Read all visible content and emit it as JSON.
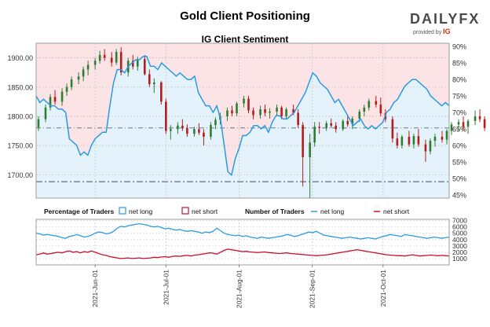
{
  "header": {
    "title": "Gold Client Positioning",
    "subtitle": "IG Client Sentiment",
    "logo_word": "DAILYFX",
    "logo_provider": "provided by",
    "logo_brand": "IG"
  },
  "colors": {
    "long": "#2b9be0",
    "short": "#c8102e",
    "bull_candle": "#2e7d32",
    "bear_candle": "#b71c1c",
    "long_fill": "#e3f2fb",
    "short_fill": "#fbe3e6",
    "price_line": "#6b7b8c"
  },
  "chart_data": [
    {
      "type": "line",
      "name": "price-and-sentiment",
      "title": "IG Client Sentiment",
      "price_axis": {
        "side": "left",
        "ylim": [
          1660,
          1925
        ],
        "ticks": [
          "1700.00",
          "1750.00",
          "1800.00",
          "1850.00",
          "1900.00"
        ],
        "tick_values": [
          1700,
          1750,
          1800,
          1850,
          1900
        ]
      },
      "pct_axis": {
        "side": "right",
        "ylim": [
          44,
          91
        ],
        "ticks": [
          "45%",
          "50%",
          "55%",
          "60%",
          "65%",
          "70%",
          "75%",
          "80%",
          "85%",
          "90%"
        ],
        "tick_values": [
          45,
          50,
          55,
          60,
          65,
          70,
          75,
          80,
          85,
          90
        ]
      },
      "reference_lines": [
        {
          "value": 1780,
          "axis": "price"
        },
        {
          "value": 1688,
          "axis": "price"
        }
      ],
      "candles": {
        "start": "2021-05-07",
        "ohlc": [
          [
            1781,
            1800,
            1775,
            1795
          ],
          [
            1795,
            1820,
            1790,
            1815
          ],
          [
            1815,
            1838,
            1810,
            1833
          ],
          [
            1833,
            1845,
            1820,
            1825
          ],
          [
            1825,
            1848,
            1818,
            1842
          ],
          [
            1842,
            1856,
            1835,
            1850
          ],
          [
            1850,
            1868,
            1845,
            1863
          ],
          [
            1863,
            1875,
            1855,
            1868
          ],
          [
            1868,
            1885,
            1860,
            1880
          ],
          [
            1880,
            1895,
            1870,
            1888
          ],
          [
            1888,
            1900,
            1880,
            1895
          ],
          [
            1895,
            1912,
            1890,
            1905
          ],
          [
            1905,
            1915,
            1895,
            1900
          ],
          [
            1900,
            1910,
            1885,
            1892
          ],
          [
            1892,
            1915,
            1888,
            1910
          ],
          [
            1910,
            1918,
            1870,
            1875
          ],
          [
            1875,
            1900,
            1868,
            1895
          ],
          [
            1895,
            1905,
            1880,
            1885
          ],
          [
            1885,
            1902,
            1878,
            1898
          ],
          [
            1898,
            1905,
            1870,
            1872
          ],
          [
            1872,
            1880,
            1850,
            1855
          ],
          [
            1855,
            1865,
            1840,
            1858
          ],
          [
            1858,
            1860,
            1820,
            1825
          ],
          [
            1825,
            1830,
            1770,
            1775
          ],
          [
            1775,
            1785,
            1760,
            1778
          ],
          [
            1778,
            1790,
            1770,
            1784
          ],
          [
            1784,
            1795,
            1775,
            1780
          ],
          [
            1780,
            1786,
            1765,
            1770
          ],
          [
            1770,
            1782,
            1765,
            1778
          ],
          [
            1778,
            1788,
            1768,
            1772
          ],
          [
            1772,
            1778,
            1750,
            1765
          ],
          [
            1765,
            1790,
            1760,
            1785
          ],
          [
            1785,
            1798,
            1778,
            1794
          ],
          [
            1794,
            1806,
            1786,
            1800
          ],
          [
            1800,
            1815,
            1792,
            1810
          ],
          [
            1810,
            1818,
            1800,
            1805
          ],
          [
            1805,
            1825,
            1800,
            1822
          ],
          [
            1822,
            1835,
            1815,
            1830
          ],
          [
            1830,
            1835,
            1805,
            1810
          ],
          [
            1810,
            1815,
            1795,
            1802
          ],
          [
            1802,
            1818,
            1796,
            1812
          ],
          [
            1812,
            1820,
            1800,
            1806
          ],
          [
            1806,
            1814,
            1796,
            1808
          ],
          [
            1808,
            1820,
            1800,
            1815
          ],
          [
            1815,
            1818,
            1795,
            1800
          ],
          [
            1800,
            1815,
            1795,
            1812
          ],
          [
            1812,
            1820,
            1802,
            1806
          ],
          [
            1806,
            1812,
            1780,
            1785
          ],
          [
            1785,
            1790,
            1680,
            1730
          ],
          [
            1730,
            1770,
            1660,
            1755
          ],
          [
            1755,
            1790,
            1748,
            1782
          ],
          [
            1782,
            1790,
            1770,
            1780
          ],
          [
            1780,
            1792,
            1775,
            1788
          ],
          [
            1788,
            1796,
            1780,
            1784
          ],
          [
            1784,
            1790,
            1772,
            1778
          ],
          [
            1778,
            1795,
            1775,
            1792
          ],
          [
            1792,
            1800,
            1782,
            1786
          ],
          [
            1786,
            1800,
            1778,
            1796
          ],
          [
            1796,
            1812,
            1790,
            1808
          ],
          [
            1808,
            1820,
            1800,
            1815
          ],
          [
            1815,
            1830,
            1810,
            1826
          ],
          [
            1826,
            1835,
            1815,
            1820
          ],
          [
            1820,
            1832,
            1800,
            1805
          ],
          [
            1805,
            1812,
            1790,
            1795
          ],
          [
            1795,
            1800,
            1755,
            1762
          ],
          [
            1762,
            1772,
            1745,
            1750
          ],
          [
            1750,
            1768,
            1745,
            1765
          ],
          [
            1765,
            1775,
            1748,
            1752
          ],
          [
            1752,
            1770,
            1745,
            1766
          ],
          [
            1766,
            1778,
            1748,
            1752
          ],
          [
            1752,
            1760,
            1722,
            1740
          ],
          [
            1740,
            1762,
            1735,
            1758
          ],
          [
            1758,
            1770,
            1748,
            1765
          ],
          [
            1765,
            1775,
            1755,
            1760
          ],
          [
            1760,
            1778,
            1752,
            1775
          ],
          [
            1775,
            1790,
            1768,
            1786
          ],
          [
            1786,
            1795,
            1775,
            1790
          ],
          [
            1790,
            1800,
            1775,
            1782
          ],
          [
            1782,
            1795,
            1770,
            1792
          ],
          [
            1792,
            1810,
            1785,
            1800
          ],
          [
            1800,
            1812,
            1790,
            1795
          ],
          [
            1795,
            1800,
            1775,
            1780
          ]
        ]
      },
      "net_long_pct_series": {
        "name": "net long",
        "values": [
          75,
          73,
          74,
          73,
          72,
          72,
          71,
          71,
          70,
          62,
          61,
          60,
          57,
          58,
          57,
          60,
          62,
          63,
          64,
          64,
          72,
          79,
          83,
          83,
          82,
          84,
          85,
          86,
          86,
          87,
          87,
          84,
          84,
          83,
          85,
          84,
          83,
          82,
          81,
          82,
          81,
          80,
          80,
          81,
          76,
          74,
          72,
          72,
          70,
          72,
          68,
          60,
          52,
          51,
          56,
          59,
          63,
          63,
          64,
          66,
          66,
          65,
          66,
          64,
          67,
          69,
          69,
          68,
          68,
          69,
          70,
          72,
          74,
          76,
          79,
          82,
          81,
          79,
          78,
          77,
          75,
          73,
          74,
          72,
          70,
          68,
          66,
          67,
          68,
          66,
          65,
          66,
          65,
          66,
          67,
          70,
          71,
          73,
          74,
          76,
          78,
          79,
          80,
          80,
          79,
          78,
          77,
          75,
          74,
          73,
          72,
          73,
          72
        ]
      }
    },
    {
      "type": "line",
      "name": "percentage-of-traders",
      "legend": {
        "title": "Percentage of Traders",
        "items": [
          "net long",
          "net short"
        ]
      },
      "series": [
        {
          "name": "net long"
        },
        {
          "name": "net short"
        }
      ]
    },
    {
      "type": "line",
      "name": "number-of-traders",
      "legend": {
        "title": "Number of Traders",
        "items": [
          "net long",
          "net short"
        ]
      },
      "y_axis": {
        "side": "right",
        "ylim": [
          0,
          7200
        ],
        "ticks": [
          "1000",
          "2000",
          "3000",
          "4000",
          "5000",
          "6000",
          "7000"
        ],
        "tick_values": [
          1000,
          2000,
          3000,
          4000,
          5000,
          6000,
          7000
        ]
      },
      "series": [
        {
          "name": "net long",
          "values": [
            5000,
            4900,
            4700,
            4800,
            4700,
            4600,
            4500,
            4300,
            4200,
            4500,
            4600,
            4800,
            4600,
            4400,
            4500,
            4700,
            5000,
            5200,
            5100,
            4900,
            5000,
            5300,
            5800,
            6100,
            6000,
            6200,
            6300,
            6400,
            6500,
            6400,
            6300,
            6100,
            6000,
            6100,
            5900,
            5700,
            5800,
            5600,
            5500,
            5600,
            5400,
            5300,
            5400,
            5300,
            5200,
            5000,
            5200,
            5100,
            5300,
            5800,
            5400,
            5000,
            4800,
            4700,
            4600,
            4700,
            4500,
            4600,
            4400,
            4300,
            4200,
            4400,
            4300,
            4200,
            4300,
            4400,
            4500,
            4600,
            4800,
            4700,
            4500,
            4600,
            4800,
            5000,
            5200,
            5100,
            5300,
            5000,
            4700,
            4600,
            4500,
            4400,
            4300,
            4200,
            4300,
            4400,
            4300,
            4200,
            4100,
            4200,
            4300,
            4200,
            4100,
            4300,
            4500,
            4600,
            4800,
            4700,
            4600,
            4500,
            4800,
            4700,
            4600,
            4500,
            4400,
            4300,
            4200,
            4300,
            4400,
            4300,
            4200,
            4300,
            4400
          ]
        },
        {
          "name": "net short",
          "values": [
            1600,
            1700,
            1900,
            1700,
            1800,
            1900,
            2000,
            1900,
            2100,
            2200,
            2000,
            2100,
            1900,
            2100,
            2000,
            2200,
            2000,
            1800,
            1600,
            1500,
            1300,
            1200,
            1100,
            1000,
            1050,
            1100,
            1000,
            1050,
            1100,
            1000,
            1050,
            1100,
            1200,
            1150,
            1250,
            1300,
            1200,
            1350,
            1400,
            1350,
            1450,
            1500,
            1400,
            1550,
            1600,
            1700,
            1800,
            1900,
            1850,
            1700,
            2000,
            2300,
            2500,
            2400,
            2300,
            2200,
            2100,
            2150,
            2050,
            2000,
            1950,
            2000,
            2050,
            1950,
            1900,
            1850,
            1800,
            1850,
            1900,
            1800,
            1750,
            1700,
            1650,
            1600,
            1550,
            1500,
            1450,
            1500,
            1550,
            1600,
            1700,
            1800,
            1900,
            2000,
            2100,
            2200,
            2300,
            2400,
            2300,
            2200,
            2100,
            2000,
            1900,
            1800,
            1700,
            1600,
            1550,
            1500,
            1450,
            1450,
            1400,
            1500,
            1600,
            1500,
            1400,
            1450,
            1500,
            1550,
            1500,
            1450,
            1500,
            1450,
            1400
          ]
        }
      ]
    }
  ],
  "x_axis": {
    "labels": [
      "2021-Jun-01",
      "2021-Jul-01",
      "2021-Aug-01",
      "2021-Sep-01",
      "2021-Oct-01"
    ],
    "label_dates": [
      "2021-06-01",
      "2021-07-01",
      "2021-08-01",
      "2021-09-01",
      "2021-10-01"
    ],
    "range": [
      "2021-05-07",
      "2021-10-29"
    ]
  }
}
